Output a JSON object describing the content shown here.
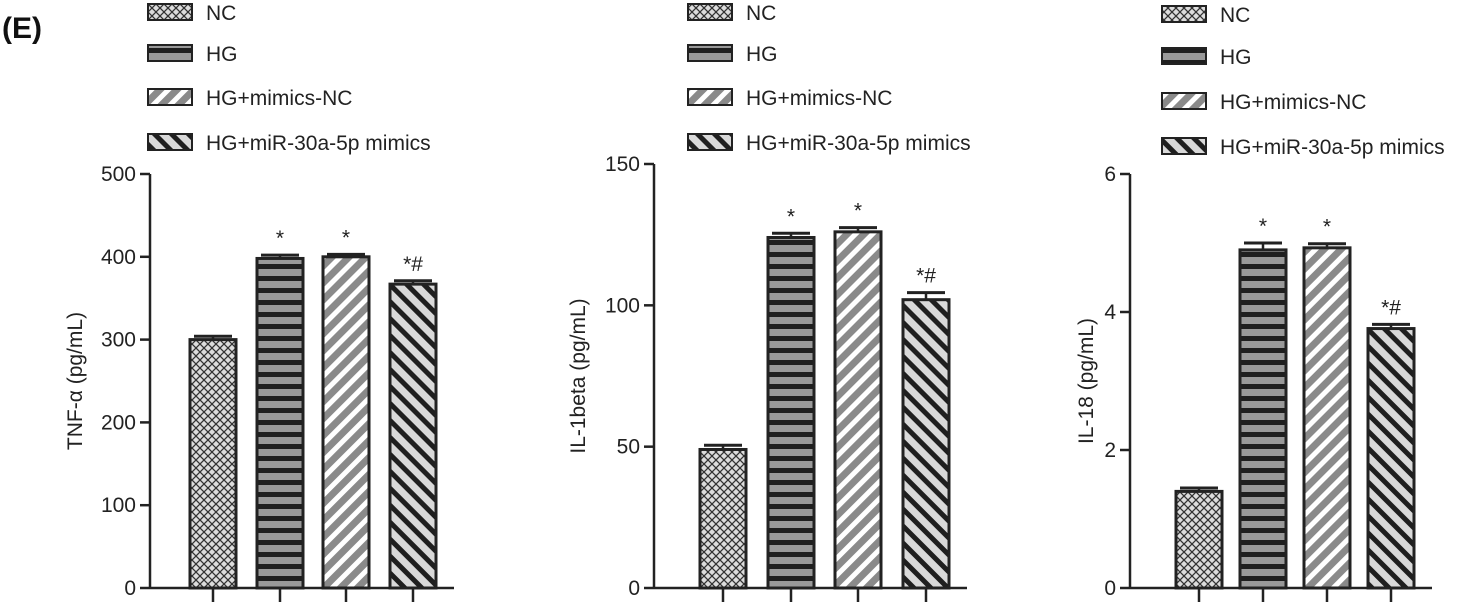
{
  "panel_label": "(E)",
  "legend": [
    "NC",
    "HG",
    "HG+mimics-NC",
    "HG+miR-30a-5p mimics"
  ],
  "colors": {
    "axis": "#222222",
    "fill_light": "#d8d8d8",
    "fill_dark": "#2a2a2a",
    "fill_gray": "#888888"
  },
  "chart_data": [
    {
      "type": "bar",
      "categories": [
        "NC",
        "HG",
        "HG+mimics-NC",
        "HG+miR-30a-5p mimics"
      ],
      "values": [
        300,
        398,
        400,
        367
      ],
      "errors": [
        4,
        4,
        3,
        4
      ],
      "annotations": [
        "",
        "*",
        "*",
        "*#"
      ],
      "ylabel": "TNF-α (pg/mL)",
      "ylim": [
        0,
        500
      ],
      "yticks": [
        0,
        100,
        200,
        300,
        400,
        500
      ],
      "ytick_labels": [
        "0",
        "100",
        "200",
        "300",
        "400",
        "500"
      ],
      "grid": false
    },
    {
      "type": "bar",
      "categories": [
        "NC",
        "HG",
        "HG+mimics-NC",
        "HG+miR-30a-5p mimics"
      ],
      "values": [
        49,
        124,
        126,
        102
      ],
      "errors": [
        1.5,
        1.5,
        1.5,
        2.5
      ],
      "annotations": [
        "",
        "*",
        "*",
        "*#"
      ],
      "ylabel": "IL-1beta (pg/mL)",
      "ylim": [
        0,
        150
      ],
      "yticks": [
        0,
        50,
        100,
        150
      ],
      "ytick_labels": [
        "0",
        "50",
        "100",
        "150"
      ],
      "grid": false
    },
    {
      "type": "bar",
      "categories": [
        "NC",
        "HG",
        "HG+mimics-NC",
        "HG+miR-30a-5p mimics"
      ],
      "values": [
        1.4,
        4.9,
        4.93,
        3.76
      ],
      "errors": [
        0.05,
        0.1,
        0.06,
        0.06
      ],
      "annotations": [
        "",
        "*",
        "*",
        "*#"
      ],
      "ylabel": "IL-18 (pg/mL)",
      "ylim": [
        0,
        6
      ],
      "yticks": [
        0,
        2,
        4,
        6
      ],
      "ytick_labels": [
        "0",
        "2",
        "4",
        "6"
      ],
      "grid": false
    }
  ]
}
